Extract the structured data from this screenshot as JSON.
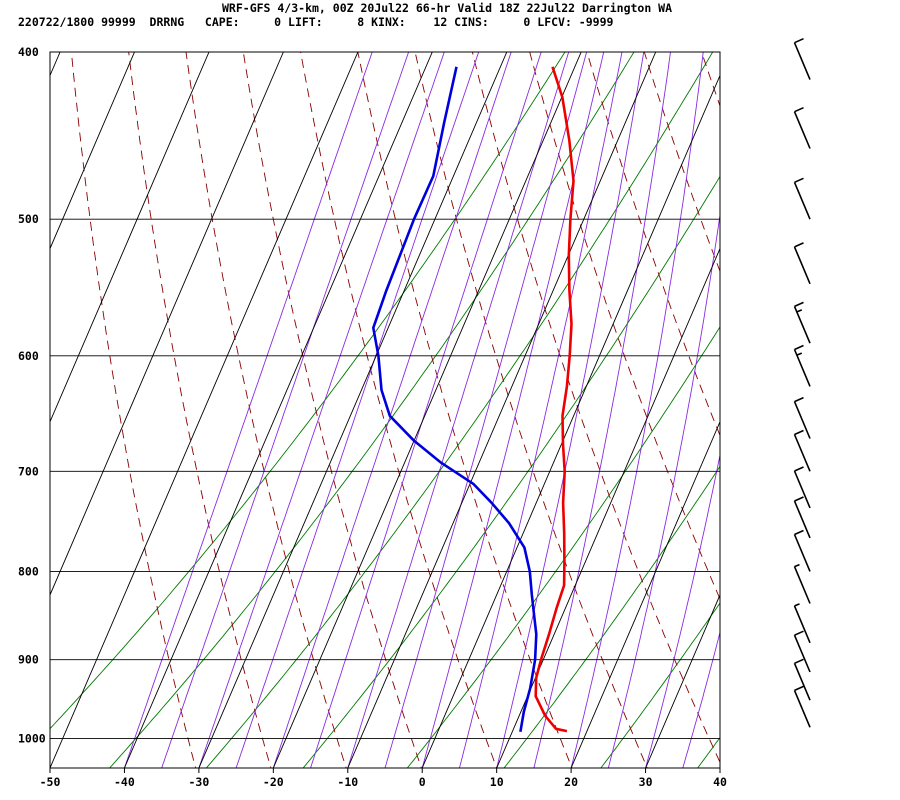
{
  "header": {
    "line1": "WRF-GFS 4/3-km, 00Z 20Jul22 66-hr Valid 18Z 22Jul22 Darrington WA",
    "line2": "220722/1800 99999  DRRNG   CAPE:     0 LIFT:     8 KINX:    12 CINS:     0 LFCV: -9999"
  },
  "chart_data": {
    "type": "line",
    "title": "WRF-GFS 4/3-km, 00Z 20Jul22 66-hr Valid 18Z 22Jul22 Darrington WA",
    "xlabel": "",
    "ylabel": "",
    "x_axis": {
      "range": [
        -50,
        40
      ],
      "ticks": [
        "-50",
        "-40",
        "-30",
        "-20",
        "-10",
        "0",
        "10",
        "20",
        "30",
        "40"
      ]
    },
    "y_axis": {
      "scale": "log",
      "range": [
        1040,
        400
      ],
      "ticks": [
        "400",
        "500",
        "600",
        "700",
        "800",
        "900",
        "1000"
      ]
    },
    "grid": true,
    "colors": {
      "temperature": "#ee0000",
      "dewpoint": "#0000dd",
      "dry_adiabat": "#8b0000",
      "moist_adiabat": "#8a2be2",
      "mixing_ratio": "#007a00",
      "grid": "#000000"
    },
    "series": [
      {
        "points": [
          {
            "p": 990,
            "t": 17.3
          },
          {
            "p": 987,
            "t": 15.7
          },
          {
            "p": 970,
            "t": 13.5
          },
          {
            "p": 945,
            "t": 11.1
          },
          {
            "p": 922,
            "t": 10.1
          },
          {
            "p": 900,
            "t": 9.7
          },
          {
            "p": 870,
            "t": 9.3
          },
          {
            "p": 840,
            "t": 8.8
          },
          {
            "p": 815,
            "t": 8.5
          },
          {
            "p": 790,
            "t": 7.2
          },
          {
            "p": 760,
            "t": 5.5
          },
          {
            "p": 730,
            "t": 3.6
          },
          {
            "p": 700,
            "t": 2.0
          },
          {
            "p": 675,
            "t": 0.2
          },
          {
            "p": 650,
            "t": -1.5
          },
          {
            "p": 625,
            "t": -2.6
          },
          {
            "p": 600,
            "t": -4.0
          },
          {
            "p": 575,
            "t": -5.6
          },
          {
            "p": 550,
            "t": -7.8
          },
          {
            "p": 525,
            "t": -9.9
          },
          {
            "p": 500,
            "t": -11.8
          },
          {
            "p": 475,
            "t": -13.6
          },
          {
            "p": 450,
            "t": -16.5
          },
          {
            "p": 425,
            "t": -19.9
          },
          {
            "p": 408,
            "t": -23.0
          }
        ]
      },
      {
        "points": [
          {
            "p": 991,
            "t": 11.1
          },
          {
            "p": 965,
            "t": 10.4
          },
          {
            "p": 935,
            "t": 9.9
          },
          {
            "p": 900,
            "t": 8.9
          },
          {
            "p": 870,
            "t": 7.6
          },
          {
            "p": 848,
            "t": 6.2
          },
          {
            "p": 825,
            "t": 4.7
          },
          {
            "p": 800,
            "t": 3.1
          },
          {
            "p": 775,
            "t": 1.0
          },
          {
            "p": 750,
            "t": -2.5
          },
          {
            "p": 730,
            "t": -6.0
          },
          {
            "p": 712,
            "t": -9.5
          },
          {
            "p": 692,
            "t": -15.1
          },
          {
            "p": 672,
            "t": -20.0
          },
          {
            "p": 650,
            "t": -24.7
          },
          {
            "p": 628,
            "t": -27.3
          },
          {
            "p": 600,
            "t": -29.7
          },
          {
            "p": 578,
            "t": -32.0
          },
          {
            "p": 550,
            "t": -32.4
          },
          {
            "p": 500,
            "t": -32.8
          },
          {
            "p": 472,
            "t": -32.7
          },
          {
            "p": 440,
            "t": -34.3
          },
          {
            "p": 408,
            "t": -35.9
          }
        ]
      }
    ],
    "wind_barbs": [
      {
        "p": 415,
        "speed": 10
      },
      {
        "p": 455,
        "speed": 10
      },
      {
        "p": 500,
        "speed": 10
      },
      {
        "p": 545,
        "speed": 10
      },
      {
        "p": 590,
        "speed": 15
      },
      {
        "p": 625,
        "speed": 15
      },
      {
        "p": 670,
        "speed": 10
      },
      {
        "p": 700,
        "speed": 10
      },
      {
        "p": 735,
        "speed": 10
      },
      {
        "p": 765,
        "speed": 10
      },
      {
        "p": 800,
        "speed": 10
      },
      {
        "p": 835,
        "speed": 5
      },
      {
        "p": 880,
        "speed": 5
      },
      {
        "p": 915,
        "speed": 10
      },
      {
        "p": 950,
        "speed": 10
      },
      {
        "p": 985,
        "speed": 10
      }
    ]
  }
}
